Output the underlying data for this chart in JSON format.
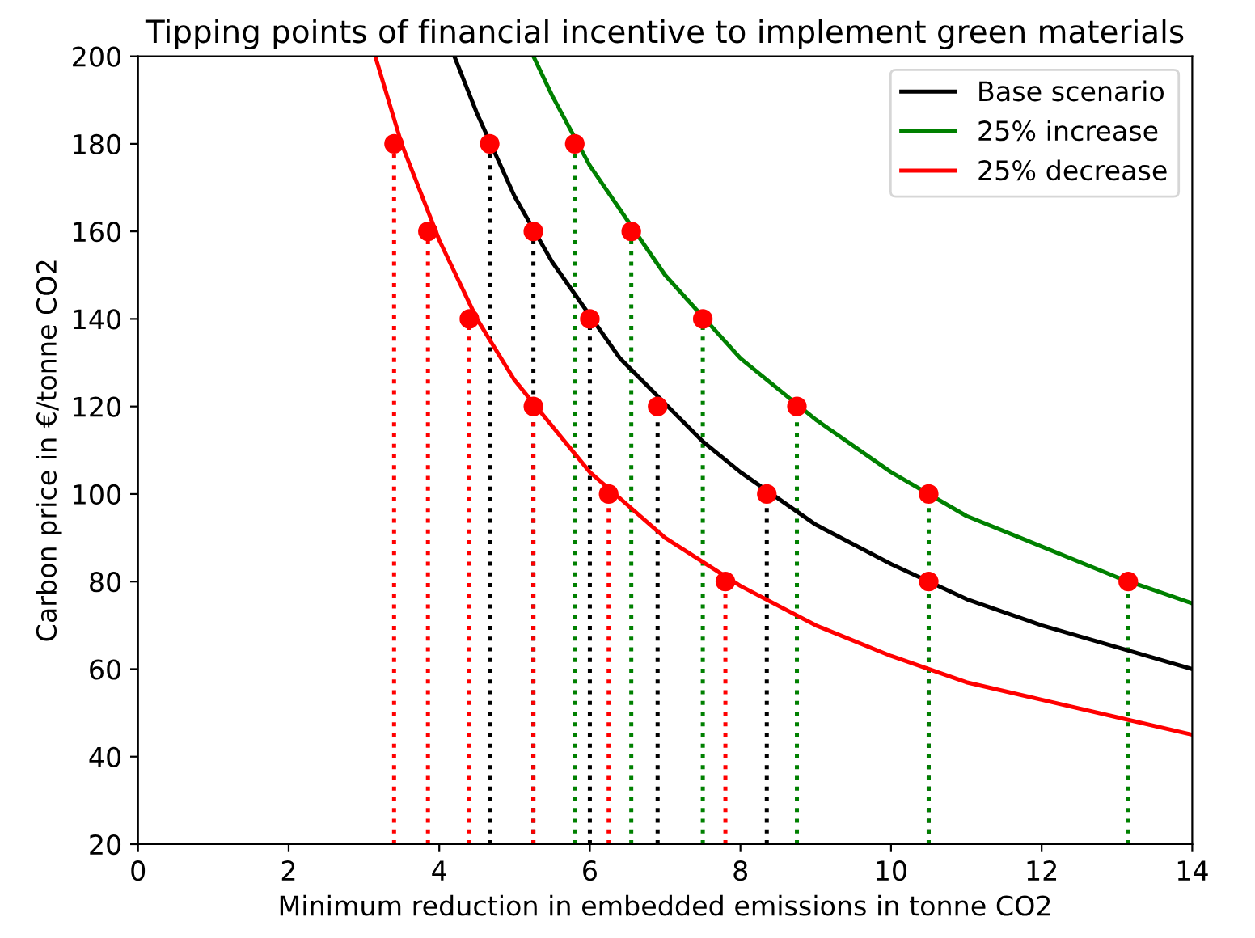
{
  "chart_data": {
    "type": "line",
    "title": "Tipping points of financial incentive to implement green materials",
    "xlabel": "Minimum reduction in embedded emissions in tonne CO2",
    "ylabel": "Carbon price in €/tonne CO2",
    "xlim": [
      0,
      14
    ],
    "ylim": [
      20,
      200
    ],
    "xticks": [
      0,
      2,
      4,
      6,
      8,
      10,
      12,
      14
    ],
    "yticks": [
      20,
      40,
      60,
      80,
      100,
      120,
      140,
      160,
      180,
      200
    ],
    "grid": false,
    "legend": "top right",
    "series": [
      {
        "name": "Base scenario",
        "color": "#000000",
        "x": [
          4.2,
          4.5,
          5,
          5.5,
          6.4,
          7.5,
          8,
          9,
          10,
          11,
          12,
          13,
          14
        ],
        "values": [
          200,
          187,
          168,
          153,
          131,
          112,
          105,
          93,
          84,
          76,
          70,
          65,
          60
        ]
      },
      {
        "name": "25% increase",
        "color": "#008000",
        "x": [
          5.25,
          5.5,
          6,
          7,
          8,
          9,
          10,
          11,
          12,
          13,
          14
        ],
        "values": [
          200,
          191,
          175,
          150,
          131,
          117,
          105,
          95,
          88,
          81,
          75
        ]
      },
      {
        "name": "25% decrease",
        "color": "#ff0000",
        "x": [
          3.15,
          3.5,
          4,
          4.5,
          5,
          6,
          7,
          8,
          9,
          10,
          11,
          12,
          13,
          14
        ],
        "values": [
          200,
          180,
          158,
          140,
          126,
          105,
          90,
          79,
          70,
          63,
          57,
          53,
          49,
          45
        ]
      },
      {
        "type": "lollipop",
        "color": "#000000",
        "line_style": "dotted",
        "colors": [
          "#ff0000",
          "#ff0000",
          "#ff0000",
          "#ff0000",
          "#ff0000",
          "#ff0000"
        ],
        "x": [
          4.67,
          5.25,
          6.0,
          6.9,
          8.35,
          10.5
        ],
        "values": [
          180,
          160,
          140,
          120,
          100,
          80
        ]
      },
      {
        "type": "lollipop",
        "color": "#008000",
        "line_style": "dotted",
        "colors": [
          "#ff0000",
          "#ff0000",
          "#ff0000",
          "#ff0000",
          "#ff0000",
          "#ff0000"
        ],
        "x": [
          5.8,
          6.55,
          7.5,
          8.75,
          10.5,
          13.15
        ],
        "values": [
          180,
          160,
          140,
          120,
          100,
          80
        ]
      },
      {
        "type": "lollipop",
        "color": "#ff0000",
        "line_style": "dotted",
        "colors": [
          "#ff0000",
          "#ff0000",
          "#ff0000",
          "#ff0000",
          "#ff0000",
          "#ff0000"
        ],
        "x": [
          3.4,
          3.85,
          4.4,
          5.25,
          6.25,
          7.8
        ],
        "values": [
          180,
          160,
          140,
          120,
          100,
          80
        ]
      }
    ]
  }
}
